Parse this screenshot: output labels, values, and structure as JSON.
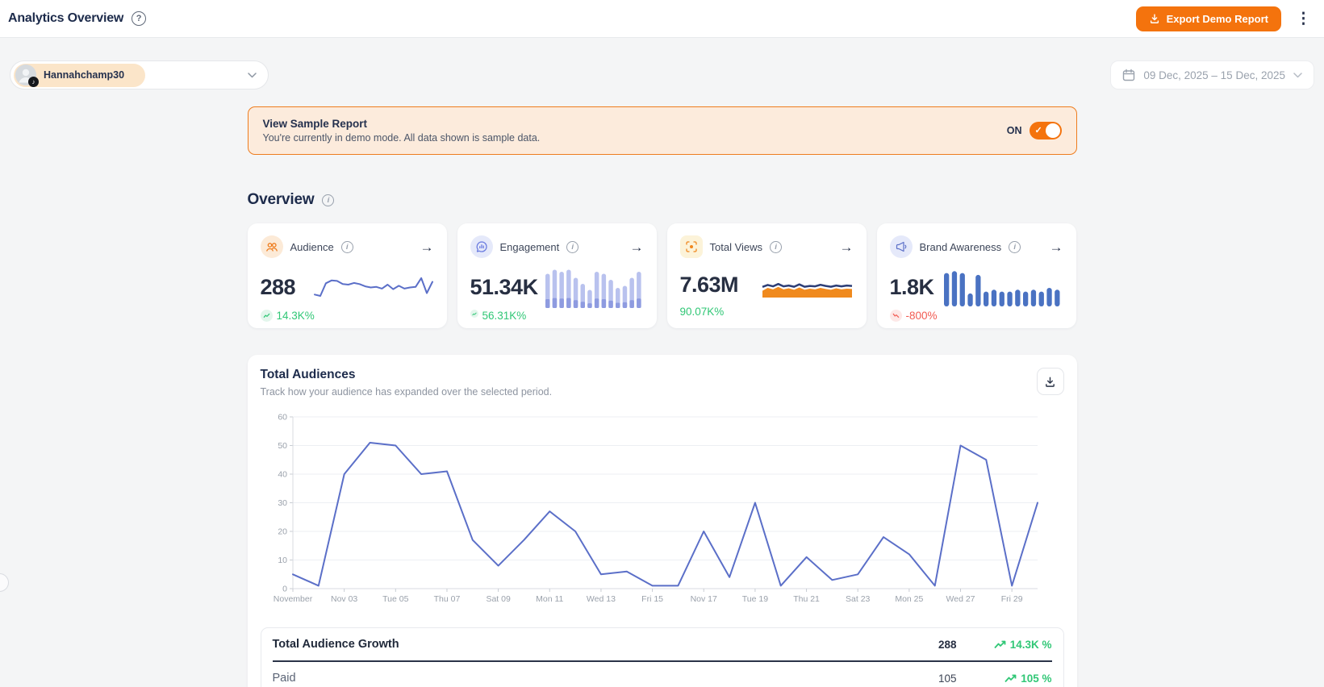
{
  "header": {
    "title": "Analytics Overview",
    "export_label": "Export Demo Report"
  },
  "account_selector": {
    "username": "Hannahchamp30"
  },
  "date_picker": {
    "range": "09 Dec, 2025 – 15 Dec, 2025"
  },
  "demo_banner": {
    "title": "View Sample Report",
    "description": "You're currently in demo mode. All data shown is sample data.",
    "toggle_state": "ON"
  },
  "overview": {
    "title": "Overview",
    "cards": [
      {
        "label": "Audience",
        "value": "288",
        "delta": "14.3K%",
        "trend": "up"
      },
      {
        "label": "Engagement",
        "value": "51.34K",
        "delta": "56.31K%",
        "trend": "up"
      },
      {
        "label": "Total Views",
        "value": "7.63M",
        "delta": "90.07K%",
        "trend": "up"
      },
      {
        "label": "Brand Awareness",
        "value": "1.8K",
        "delta": "-800%",
        "trend": "down"
      }
    ]
  },
  "total_audiences": {
    "title": "Total Audiences",
    "subtitle": "Track how your audience has expanded over the selected period."
  },
  "growth_table": {
    "header": {
      "label": "Total Audience Growth",
      "value": "288",
      "delta": "14.3K %"
    },
    "rows": [
      {
        "label": "Paid",
        "value": "105",
        "delta": "105 %"
      }
    ]
  },
  "chart_data": {
    "main": {
      "type": "line",
      "title": "Total Audiences",
      "ylim": [
        0,
        60
      ],
      "ytick_step": 10,
      "x_tick_every": 2,
      "x_tick_labels": [
        "November",
        "Nov 03",
        "Tue 05",
        "Thu 07",
        "Sat 09",
        "Mon 11",
        "Wed 13",
        "Fri 15",
        "Nov 17",
        "Tue 19",
        "Thu 21",
        "Sat 23",
        "Mon 25",
        "Wed 27",
        "Fri 29"
      ],
      "values": [
        5,
        1,
        40,
        51,
        50,
        40,
        41,
        17,
        8,
        17,
        27,
        20,
        5,
        6,
        1,
        1,
        20,
        4,
        30,
        1,
        11,
        3,
        5,
        18,
        12,
        1,
        50,
        45,
        1,
        30
      ],
      "color": "#5B6FC8",
      "grid": true,
      "legend": false
    },
    "sparklines": {
      "audience": {
        "type": "line",
        "color": "#5B6FC8",
        "values": [
          2.5,
          2,
          6.5,
          7.5,
          7.3,
          6.2,
          6.0,
          6.6,
          6.2,
          5.4,
          5.0,
          5.2,
          4.6,
          6.0,
          4.4,
          5.6,
          4.6,
          5.0,
          5.2,
          8.3,
          3.0,
          7.0
        ]
      },
      "engagement": {
        "type": "bar",
        "color": "#b9c2ee",
        "color2": "#8e9be0",
        "values": [
          8.5,
          9.5,
          9,
          9.5,
          7.5,
          6,
          4.5,
          9,
          8.5,
          7,
          5,
          5.5,
          7.5,
          9
        ]
      },
      "views": {
        "type": "area",
        "line_color": "#2c3e77",
        "area_color": "#f08a1e",
        "line": [
          5.5,
          6.5,
          5.8,
          7,
          5.8,
          6.2,
          5.6,
          6.8,
          5.6,
          6,
          5.8,
          6.6,
          6,
          5.6,
          6.2,
          5.8,
          6.2,
          6
        ],
        "area": [
          3.5,
          5,
          4.2,
          5.5,
          4.2,
          4.8,
          4,
          5.2,
          4,
          4.6,
          4.2,
          5,
          4.4,
          4,
          4.8,
          4.2,
          4.6,
          4.4
        ]
      },
      "awareness": {
        "type": "bar",
        "color": "#4a72c2",
        "values": [
          9,
          9.5,
          9,
          3.5,
          8.5,
          4,
          4.5,
          4,
          4,
          4.5,
          4,
          4.5,
          4,
          5,
          4.5
        ]
      }
    }
  },
  "colors": {
    "accent_orange": "#F4730D",
    "positive_green": "#31C776",
    "negative_red": "#F25B52",
    "chart_blue": "#5B6FC8",
    "banner_bg": "#FCEBDC"
  }
}
